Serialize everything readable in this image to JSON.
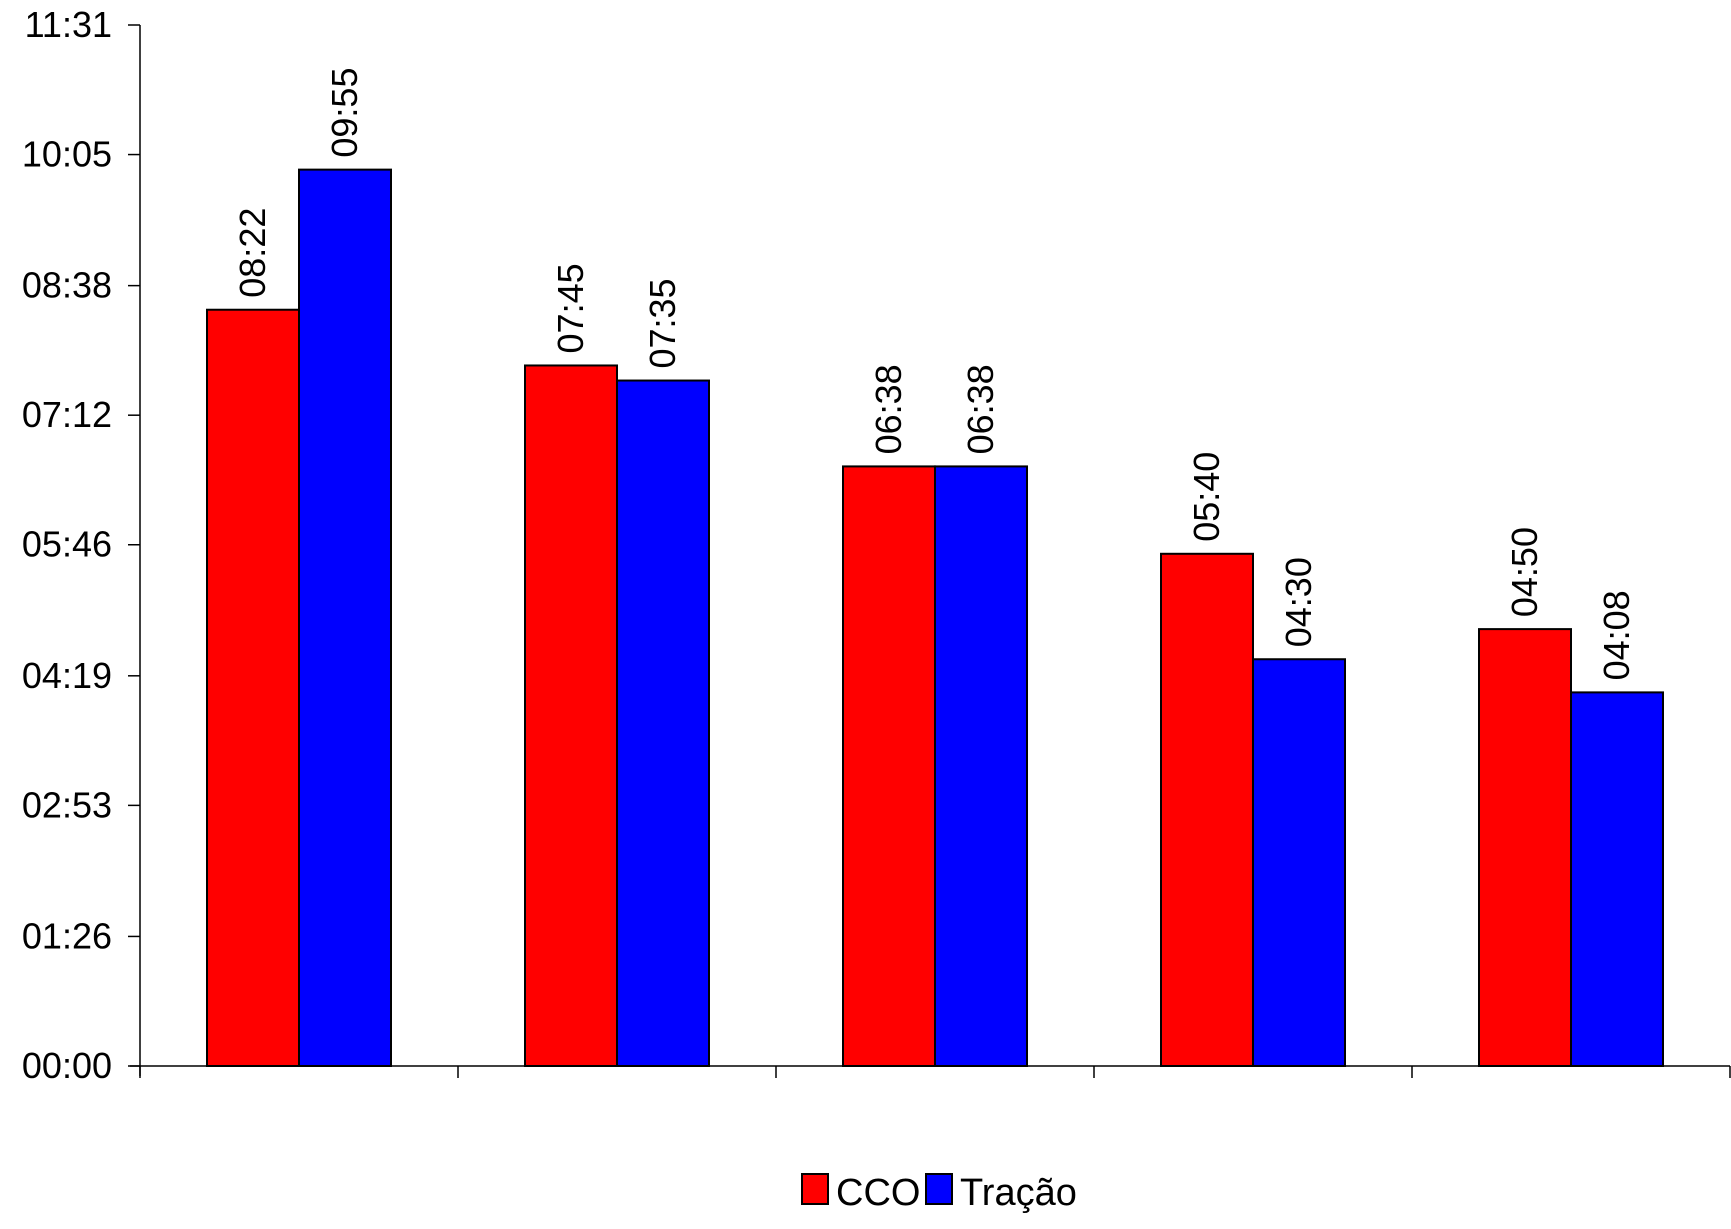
{
  "chart_data": {
    "type": "bar",
    "categories": [
      "",
      "",
      "",
      "",
      ""
    ],
    "series": [
      {
        "name": "CCO",
        "color": "#ff0000",
        "values": [
          "08:22",
          "07:45",
          "06:38",
          "05:40",
          "04:50"
        ]
      },
      {
        "name": "Tração",
        "color": "#0000ff",
        "values": [
          "09:55",
          "07:35",
          "06:38",
          "04:30",
          "04:08"
        ]
      }
    ],
    "y_ticks": [
      "00:00",
      "01:26",
      "02:53",
      "04:19",
      "05:46",
      "07:12",
      "08:38",
      "10:05",
      "11:31"
    ],
    "ylim": [
      "00:00",
      "11:31"
    ],
    "title": "",
    "xlabel": "",
    "ylabel": "",
    "legend_position": "bottom-center",
    "grid": false
  }
}
